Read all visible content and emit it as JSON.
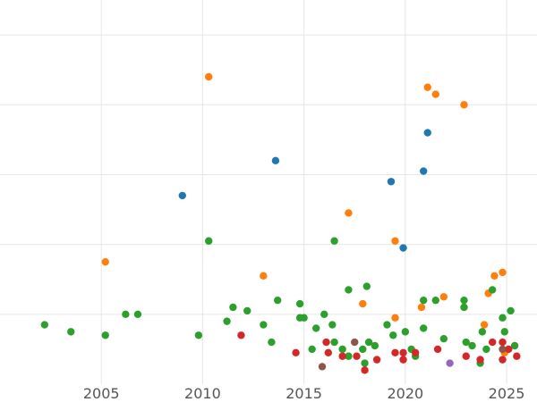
{
  "chart_data": {
    "type": "scatter",
    "title": "",
    "xlabel": "",
    "ylabel": "",
    "grid": true,
    "x_ticks": [
      2005,
      2010,
      2015,
      2020,
      2025
    ],
    "xlim": [
      2000,
      2026.5
    ],
    "ylim": [
      0,
      5.5
    ],
    "y_gridlines": [
      1,
      2,
      3,
      4,
      5
    ],
    "colors": {
      "blue": "#1f77b4",
      "orange": "#ff7f0e",
      "green": "#2ca02c",
      "red": "#d62728",
      "brown": "#8c564b",
      "purple": "#9467bd"
    },
    "series": [
      {
        "color": "blue",
        "points": [
          [
            2009.0,
            2.7
          ],
          [
            2013.6,
            3.2
          ],
          [
            2019.3,
            2.9
          ],
          [
            2019.9,
            1.95
          ],
          [
            2020.9,
            3.05
          ],
          [
            2021.1,
            3.6
          ]
        ]
      },
      {
        "color": "orange",
        "points": [
          [
            2005.2,
            1.75
          ],
          [
            2010.3,
            4.4
          ],
          [
            2013.0,
            1.55
          ],
          [
            2017.2,
            2.45
          ],
          [
            2017.9,
            1.15
          ],
          [
            2019.5,
            0.95
          ],
          [
            2019.5,
            2.05
          ],
          [
            2020.8,
            1.1
          ],
          [
            2021.1,
            4.25
          ],
          [
            2021.5,
            4.15
          ],
          [
            2021.9,
            1.25
          ],
          [
            2022.9,
            4.0
          ],
          [
            2023.9,
            0.85
          ],
          [
            2024.1,
            1.3
          ],
          [
            2024.4,
            1.55
          ],
          [
            2024.8,
            1.6
          ],
          [
            2024.9,
            0.45
          ]
        ]
      },
      {
        "color": "green",
        "points": [
          [
            2002.2,
            0.85
          ],
          [
            2003.5,
            0.75
          ],
          [
            2005.2,
            0.7
          ],
          [
            2006.2,
            1.0
          ],
          [
            2006.8,
            1.0
          ],
          [
            2009.8,
            0.7
          ],
          [
            2010.3,
            2.05
          ],
          [
            2011.2,
            0.9
          ],
          [
            2011.5,
            1.1
          ],
          [
            2012.2,
            1.05
          ],
          [
            2013.0,
            0.85
          ],
          [
            2013.4,
            0.6
          ],
          [
            2013.7,
            1.2
          ],
          [
            2014.8,
            1.15
          ],
          [
            2014.8,
            0.95
          ],
          [
            2015.0,
            0.95
          ],
          [
            2015.4,
            0.5
          ],
          [
            2015.6,
            0.8
          ],
          [
            2016.0,
            1.0
          ],
          [
            2016.4,
            0.85
          ],
          [
            2016.5,
            0.6
          ],
          [
            2016.5,
            2.05
          ],
          [
            2016.9,
            0.5
          ],
          [
            2017.2,
            0.4
          ],
          [
            2017.2,
            1.35
          ],
          [
            2017.9,
            0.5
          ],
          [
            2018.0,
            0.3
          ],
          [
            2018.1,
            1.4
          ],
          [
            2018.2,
            0.6
          ],
          [
            2018.5,
            0.55
          ],
          [
            2019.1,
            0.85
          ],
          [
            2019.4,
            0.7
          ],
          [
            2020.0,
            0.75
          ],
          [
            2020.3,
            0.5
          ],
          [
            2020.5,
            0.4
          ],
          [
            2020.9,
            1.2
          ],
          [
            2020.9,
            0.8
          ],
          [
            2021.5,
            1.2
          ],
          [
            2021.9,
            0.65
          ],
          [
            2022.9,
            1.1
          ],
          [
            2022.9,
            1.2
          ],
          [
            2023.0,
            0.6
          ],
          [
            2023.3,
            0.55
          ],
          [
            2023.7,
            0.3
          ],
          [
            2023.8,
            0.75
          ],
          [
            2024.0,
            0.5
          ],
          [
            2024.3,
            1.35
          ],
          [
            2024.8,
            0.95
          ],
          [
            2024.9,
            0.75
          ],
          [
            2025.2,
            1.05
          ],
          [
            2025.4,
            0.55
          ]
        ]
      },
      {
        "color": "red",
        "points": [
          [
            2011.9,
            0.7
          ],
          [
            2014.6,
            0.45
          ],
          [
            2016.1,
            0.6
          ],
          [
            2016.2,
            0.45
          ],
          [
            2016.9,
            0.4
          ],
          [
            2017.6,
            0.4
          ],
          [
            2018.0,
            0.2
          ],
          [
            2018.6,
            0.35
          ],
          [
            2019.5,
            0.45
          ],
          [
            2019.9,
            0.45
          ],
          [
            2019.9,
            0.35
          ],
          [
            2020.5,
            0.45
          ],
          [
            2021.6,
            0.5
          ],
          [
            2023.0,
            0.4
          ],
          [
            2023.7,
            0.35
          ],
          [
            2024.3,
            0.6
          ],
          [
            2024.8,
            0.6
          ],
          [
            2024.8,
            0.35
          ],
          [
            2025.1,
            0.5
          ],
          [
            2025.5,
            0.4
          ]
        ]
      },
      {
        "color": "brown",
        "points": [
          [
            2015.9,
            0.25
          ],
          [
            2017.5,
            0.6
          ],
          [
            2024.8,
            0.5
          ]
        ]
      },
      {
        "color": "purple",
        "points": [
          [
            2022.2,
            0.3
          ]
        ]
      }
    ]
  }
}
